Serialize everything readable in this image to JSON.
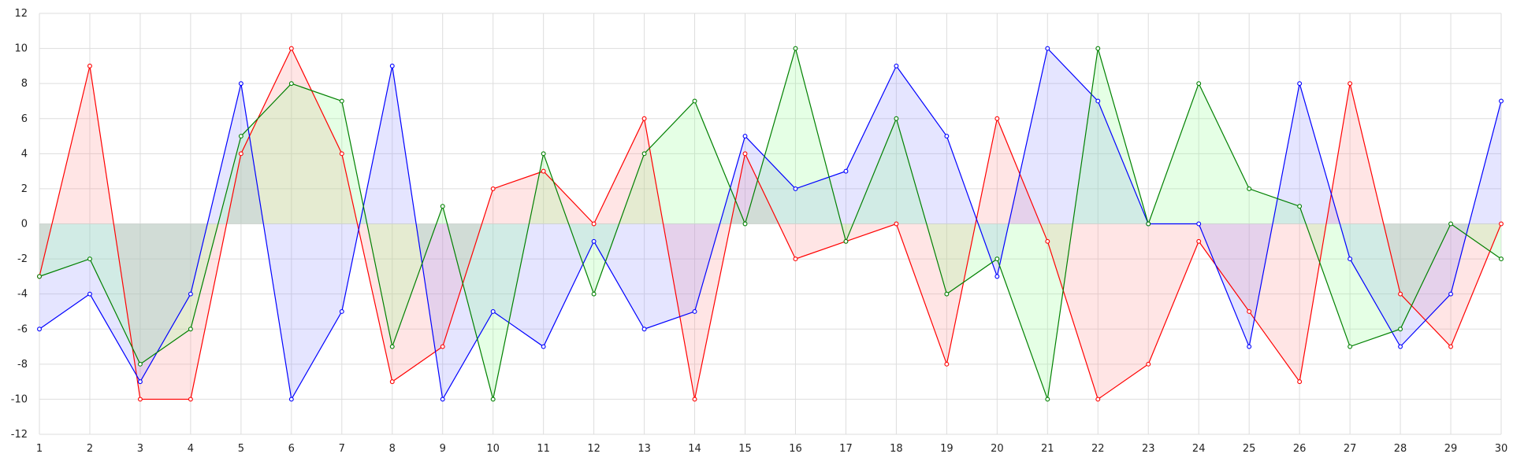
{
  "chart_data": {
    "type": "area",
    "title": "",
    "xlabel": "",
    "ylabel": "",
    "x": [
      1,
      2,
      3,
      4,
      5,
      6,
      7,
      8,
      9,
      10,
      11,
      12,
      13,
      14,
      15,
      16,
      17,
      18,
      19,
      20,
      21,
      22,
      23,
      24,
      25,
      26,
      27,
      28,
      29,
      30
    ],
    "xlim": [
      1,
      30
    ],
    "ylim": [
      -12,
      12
    ],
    "yticks": [
      -12,
      -10,
      -8,
      -6,
      -4,
      -2,
      0,
      2,
      4,
      6,
      8,
      10,
      12
    ],
    "grid": true,
    "legend": "none",
    "fill_baseline": 0,
    "series": [
      {
        "color": "#ff0000",
        "fill": "#ff9999",
        "values": [
          -3,
          9,
          -10,
          -10,
          4,
          10,
          4,
          -9,
          -7,
          2,
          3,
          0,
          6,
          -10,
          4,
          -2,
          -1,
          0,
          -8,
          6,
          -1,
          -10,
          -8,
          -1,
          -5,
          -9,
          8,
          -4,
          -7,
          0
        ]
      },
      {
        "color": "#0000ff",
        "fill": "#9999ff",
        "values": [
          -6,
          -4,
          -9,
          -4,
          8,
          -10,
          -5,
          9,
          -10,
          -5,
          -7,
          -1,
          -6,
          -5,
          5,
          2,
          3,
          9,
          5,
          -3,
          10,
          7,
          0,
          0,
          -7,
          8,
          -2,
          -7,
          -4,
          7
        ]
      },
      {
        "color": "#008000",
        "fill": "#99ff99",
        "values": [
          -3,
          -2,
          -8,
          -6,
          5,
          8,
          7,
          -7,
          1,
          -10,
          4,
          -4,
          4,
          7,
          0,
          10,
          -1,
          6,
          -4,
          -2,
          -10,
          10,
          0,
          8,
          2,
          1,
          -7,
          -6,
          0,
          -2
        ]
      }
    ]
  }
}
